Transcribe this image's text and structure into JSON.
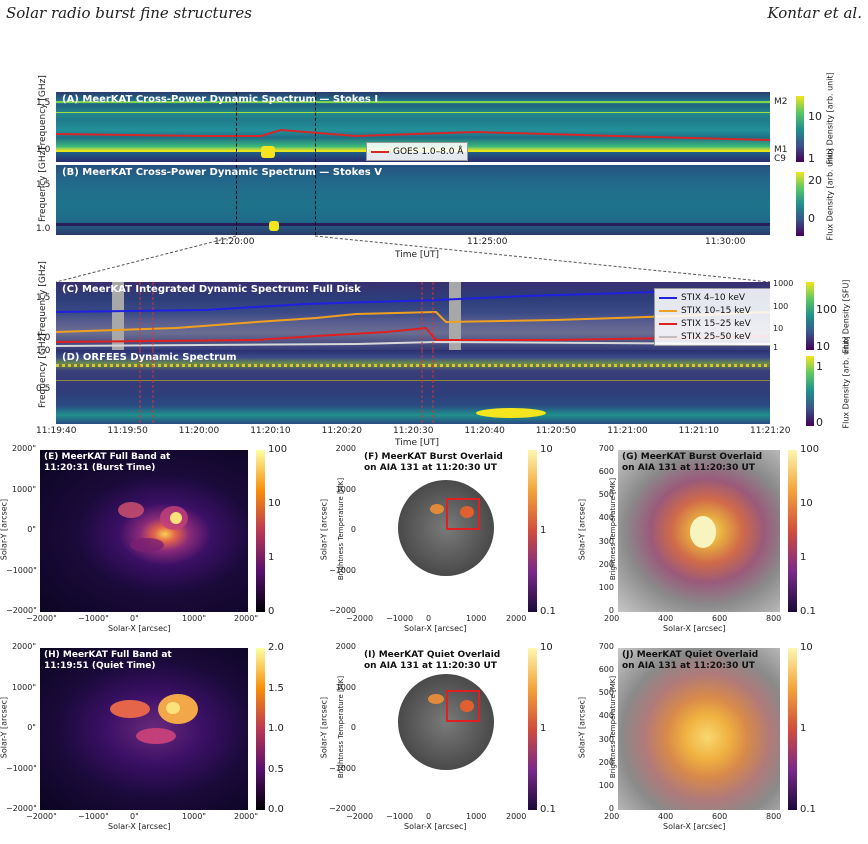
{
  "header": {
    "left": "Solar radio burst fine structures",
    "right": "Kontar et al."
  },
  "panelA": {
    "title": "(A) MeerKAT Cross-Power Dynamic Spectrum — Stokes I",
    "ylabel": "Frequency [GHz]",
    "yticks": [
      "1.5",
      "1.0"
    ],
    "legend": "GOES 1.0–8.0 Å",
    "goes_markers": [
      "M2",
      "M1",
      "C9"
    ],
    "cbar_label": "Flux Density [arb. unit]",
    "cbar_ticks": [
      "10",
      "1"
    ]
  },
  "panelB": {
    "title": "(B) MeerKAT Cross-Power Dynamic Spectrum — Stokes V",
    "ylabel": "Frequency [GHz]",
    "yticks": [
      "1.5",
      "1.0"
    ],
    "cbar_label": "Flux Density [arb. unit]",
    "cbar_ticks": [
      "20",
      "0"
    ],
    "xticks": [
      "11:20:00",
      "11:25:00",
      "11:30:00"
    ],
    "xlabel": "Time [UT]"
  },
  "panelC": {
    "title": "(C) MeerKAT Integrated Dynamic Spectrum: Full Disk",
    "ylabel": "Frequency [GHz]",
    "yticks": [
      "1.5",
      "1.0"
    ],
    "right_ticks": [
      "1000",
      "100",
      "10",
      "1"
    ],
    "legend": [
      "STIX 4–10 keV",
      "STIX 10–15 keV",
      "STIX 15–25 keV",
      "STIX 25–50 keV"
    ],
    "legend_colors": [
      "#2020e0",
      "#f0a020",
      "#e02020",
      "#c0c0c0"
    ],
    "cbar_label": "Flux Density [SFU]",
    "cbar_ticks": [
      "100",
      "10"
    ]
  },
  "panelD": {
    "title": "(D) ORFEES Dynamic Spectrum",
    "ylabel": "Frequency [GHz]",
    "yticks": [
      "1.0",
      "0.5"
    ],
    "cbar_label": "Flux Density [arb. unit]",
    "cbar_ticks": [
      "1",
      "0"
    ],
    "xticks": [
      "11:19:40",
      "11:19:50",
      "11:20:00",
      "11:20:10",
      "11:20:20",
      "11:20:30",
      "11:20:40",
      "11:20:50",
      "11:21:00",
      "11:21:10",
      "11:21:20"
    ],
    "xlabel": "Time [UT]"
  },
  "panelE": {
    "title": "(E) MeerKAT Full Band at\n11:20:31 (Burst Time)",
    "xticks": [
      "−2000\"",
      "−1000\"",
      "0\"",
      "1000\"",
      "2000\""
    ],
    "yticks": [
      "2000\"",
      "1000\"",
      "0\"",
      "−1000\"",
      "−2000\""
    ],
    "xlabel": "Solar-X [arcsec]",
    "ylabel": "Solar-Y [arcsec]",
    "cbar_label": "Brightness Temperature [MK]",
    "cbar_ticks": [
      "100",
      "10",
      "1",
      "0"
    ]
  },
  "panelF": {
    "title": "(F) MeerKAT Burst Overlaid\non AIA 131 at 11:20:30 UT",
    "xticks": [
      "−2000",
      "−1000",
      "0",
      "1000",
      "2000"
    ],
    "yticks": [
      "2000",
      "1000",
      "0",
      "−1000",
      "−2000"
    ],
    "xlabel": "Solar-X [arcsec]",
    "ylabel": "Solar-Y [arcsec]",
    "cbar_label": "Brightness Temperature [MK]",
    "cbar_ticks": [
      "10",
      "1",
      "0.1"
    ]
  },
  "panelG": {
    "title": "(G) MeerKAT Burst Overlaid\non AIA 131 at 11:20:30 UT",
    "xticks": [
      "200",
      "400",
      "600",
      "800"
    ],
    "yticks": [
      "700",
      "600",
      "500",
      "400",
      "300",
      "200",
      "100",
      "0"
    ],
    "xlabel": "Solar-X [arcsec]",
    "ylabel": "Solar-Y [arcsec]",
    "cbar_label": "Brightness Temperature [MK]",
    "cbar_ticks": [
      "100",
      "10",
      "1",
      "0.1"
    ]
  },
  "panelH": {
    "title": "(H) MeerKAT Full Band at\n11:19:51 (Quiet Time)",
    "xticks": [
      "−2000\"",
      "−1000\"",
      "0\"",
      "1000\"",
      "2000\""
    ],
    "yticks": [
      "2000\"",
      "1000\"",
      "0\"",
      "−1000\"",
      "−2000\""
    ],
    "xlabel": "Solar-X [arcsec]",
    "ylabel": "Solar-Y [arcsec]",
    "cbar_label": "Brightness Temperature [MK]",
    "cbar_ticks": [
      "2.0",
      "1.5",
      "1.0",
      "0.5",
      "0.0"
    ]
  },
  "panelI": {
    "title": "(I) MeerKAT Quiet Overlaid\non AIA 131 at 11:20:30 UT",
    "xticks": [
      "−2000",
      "−1000",
      "0",
      "1000",
      "2000"
    ],
    "yticks": [
      "2000",
      "1000",
      "0",
      "−1000",
      "−2000"
    ],
    "xlabel": "Solar-X [arcsec]",
    "ylabel": "Solar-Y [arcsec]",
    "cbar_label": "Brightness Temperature [MK]",
    "cbar_ticks": [
      "10",
      "1",
      "0.1"
    ]
  },
  "panelJ": {
    "title": "(J) MeerKAT Quiet Overlaid\non AIA 131 at 11:20:30 UT",
    "xticks": [
      "200",
      "400",
      "600",
      "800"
    ],
    "yticks": [
      "700",
      "600",
      "500",
      "400",
      "300",
      "200",
      "100",
      "0"
    ],
    "xlabel": "Solar-X [arcsec]",
    "ylabel": "Solar-Y [arcsec]",
    "cbar_label": "Brightness Temperature [MK]",
    "cbar_ticks": [
      "10",
      "1",
      "0.1"
    ]
  },
  "colors": {
    "viridis_dark": "#2c1e5e",
    "viridis_mid": "#25838e",
    "viridis_yellow": "#f4e51e",
    "goes": "#d62728"
  }
}
